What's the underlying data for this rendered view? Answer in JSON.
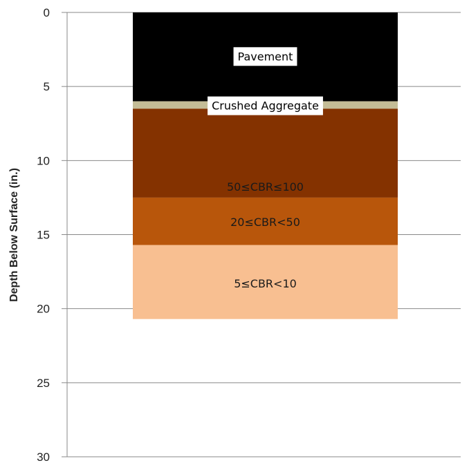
{
  "chart_data": {
    "type": "bar",
    "subtype": "stacked-column",
    "title": "",
    "xlabel": "",
    "ylabel": "Depth Below Surface (in.)",
    "ylim": [
      0,
      30
    ],
    "y_axis_inverted": true,
    "y_ticks": [
      "0",
      "5",
      "10",
      "15",
      "20",
      "25",
      "30"
    ],
    "grid": "horizontal",
    "layers": [
      {
        "name": "Pavement",
        "top": 0,
        "bottom": 6.0,
        "color": "#000000",
        "label_style": "boxed"
      },
      {
        "name": "Crushed Aggregate",
        "top": 6.0,
        "bottom": 6.5,
        "color": "#c4bd97",
        "label_style": "boxed"
      },
      {
        "name": "50≤CBR≤100",
        "top": 6.5,
        "bottom": 12.5,
        "color": "#843200",
        "label_style": "plain"
      },
      {
        "name": "20≤CBR<50",
        "top": 12.5,
        "bottom": 15.7,
        "color": "#b8560b",
        "label_style": "plain"
      },
      {
        "name": "5≤CBR<10",
        "top": 15.7,
        "bottom": 20.7,
        "color": "#f8bf91",
        "label_style": "plain"
      }
    ]
  }
}
